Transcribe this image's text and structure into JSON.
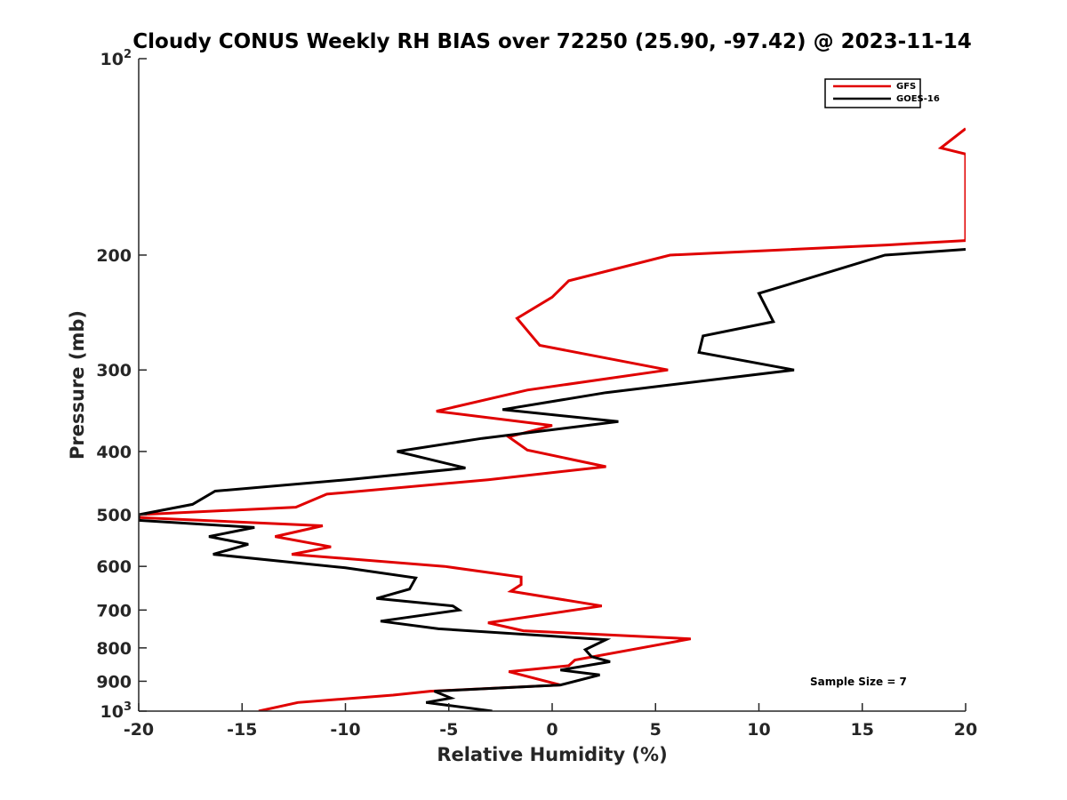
{
  "chart_data": {
    "type": "line",
    "title": "Cloudy CONUS Weekly RH BIAS over 72250 (25.90, -97.42) @ 2023-11-14",
    "xlabel": "Relative Humidity (%)",
    "ylabel": "Pressure (mb)",
    "xlim": [
      -20,
      20
    ],
    "ylim": [
      100,
      1000
    ],
    "y_scale": "log",
    "y_reversed": true,
    "grid": false,
    "legend_position": "top-right",
    "x_ticks": [
      -20,
      -15,
      -10,
      -5,
      0,
      5,
      10,
      15,
      20
    ],
    "y_ticks": [
      {
        "value": 100,
        "label": "10",
        "sup": "2"
      },
      {
        "value": 200,
        "label": "200"
      },
      {
        "value": 300,
        "label": "300"
      },
      {
        "value": 400,
        "label": "400"
      },
      {
        "value": 500,
        "label": "500"
      },
      {
        "value": 600,
        "label": "600"
      },
      {
        "value": 700,
        "label": "700"
      },
      {
        "value": 800,
        "label": "800"
      },
      {
        "value": 900,
        "label": "900"
      },
      {
        "value": 1000,
        "label": "10",
        "sup": "3"
      }
    ],
    "annotation": "Sample Size = 7",
    "series": [
      {
        "name": "GFS",
        "color": "#e00000",
        "points": [
          [
            20,
            128
          ],
          [
            18.8,
            137
          ],
          [
            20,
            140
          ],
          [
            20,
            190
          ],
          [
            16.2,
            193
          ],
          [
            5.7,
            200
          ],
          [
            0.8,
            219
          ],
          [
            0,
            232
          ],
          [
            -1.7,
            250
          ],
          [
            -0.6,
            275
          ],
          [
            5.6,
            300
          ],
          [
            -1.2,
            322
          ],
          [
            -5.6,
            347
          ],
          [
            0,
            365
          ],
          [
            -2.1,
            380
          ],
          [
            -1.2,
            398
          ],
          [
            2.6,
            422
          ],
          [
            -3.1,
            442
          ],
          [
            -10.9,
            465
          ],
          [
            -12.4,
            487
          ],
          [
            -20,
            500
          ],
          [
            -20,
            505
          ],
          [
            -11.1,
            520
          ],
          [
            -13.4,
            540
          ],
          [
            -10.7,
            560
          ],
          [
            -12.6,
            575
          ],
          [
            -5.2,
            600
          ],
          [
            -1.5,
            623
          ],
          [
            -1.5,
            640
          ],
          [
            -2,
            655
          ],
          [
            2.4,
            690
          ],
          [
            -3.1,
            732
          ],
          [
            -1.4,
            753
          ],
          [
            6.7,
            775
          ],
          [
            1.1,
            835
          ],
          [
            0.8,
            852
          ],
          [
            -2.1,
            870
          ],
          [
            0.4,
            912
          ],
          [
            -5.9,
            932
          ],
          [
            -7.7,
            945
          ],
          [
            -12.3,
            970
          ],
          [
            -14.2,
            1000
          ]
        ]
      },
      {
        "name": "GOES-16",
        "color": "#000000",
        "points": [
          [
            20,
            196
          ],
          [
            16.1,
            200
          ],
          [
            10,
            229
          ],
          [
            10.7,
            253
          ],
          [
            7.3,
            266
          ],
          [
            7.1,
            282
          ],
          [
            11.7,
            300
          ],
          [
            2.6,
            325
          ],
          [
            -2.4,
            345
          ],
          [
            3.2,
            360
          ],
          [
            -3.4,
            382
          ],
          [
            -7.5,
            400
          ],
          [
            -4.2,
            424
          ],
          [
            -9.6,
            441
          ],
          [
            -16.3,
            460
          ],
          [
            -17.4,
            482
          ],
          [
            -20,
            500
          ],
          [
            -20,
            510
          ],
          [
            -14.4,
            523
          ],
          [
            -16.6,
            540
          ],
          [
            -14.7,
            555
          ],
          [
            -16.4,
            575
          ],
          [
            -10,
            603
          ],
          [
            -6.6,
            625
          ],
          [
            -6.9,
            650
          ],
          [
            -8.5,
            672
          ],
          [
            -4.8,
            690
          ],
          [
            -4.5,
            700
          ],
          [
            -8.3,
            728
          ],
          [
            -5.5,
            748
          ],
          [
            2.6,
            777
          ],
          [
            1.6,
            805
          ],
          [
            1.9,
            825
          ],
          [
            2.8,
            840
          ],
          [
            0.4,
            865
          ],
          [
            2.3,
            880
          ],
          [
            0.4,
            912
          ],
          [
            -5.7,
            932
          ],
          [
            -4.9,
            955
          ],
          [
            -6.1,
            970
          ],
          [
            -5,
            980
          ],
          [
            -2.9,
            1000
          ]
        ]
      }
    ]
  }
}
